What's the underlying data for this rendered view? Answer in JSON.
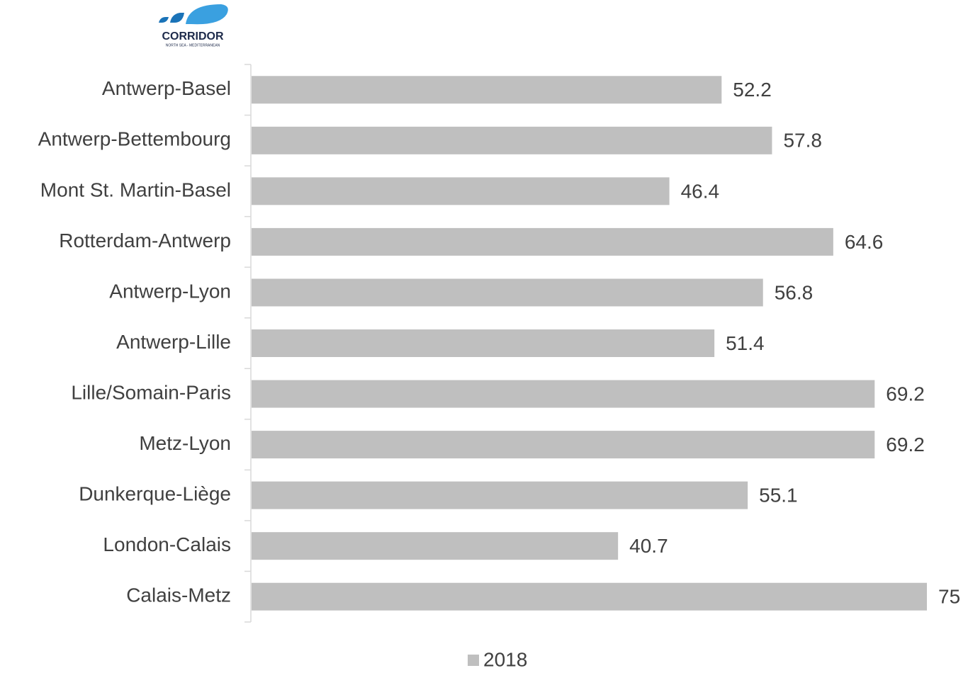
{
  "logo": {
    "name": "CORRIDOR",
    "tagline": "NORTH SEA - MEDITERRANEAN"
  },
  "chart_data": {
    "type": "bar",
    "orientation": "horizontal",
    "categories": [
      "Antwerp-Basel",
      "Antwerp-Bettembourg",
      "Mont St. Martin-Basel",
      "Rotterdam-Antwerp",
      "Antwerp-Lyon",
      "Antwerp-Lille",
      "Lille/Somain-Paris",
      "Metz-Lyon",
      "Dunkerque-Liège",
      "London-Calais",
      "Calais-Metz"
    ],
    "series": [
      {
        "name": "2018",
        "color": "#bfbfbf",
        "values": [
          52.2,
          57.8,
          46.4,
          64.6,
          56.8,
          51.4,
          69.2,
          69.2,
          55.1,
          40.7,
          75
        ]
      }
    ],
    "legend": "bottom"
  }
}
